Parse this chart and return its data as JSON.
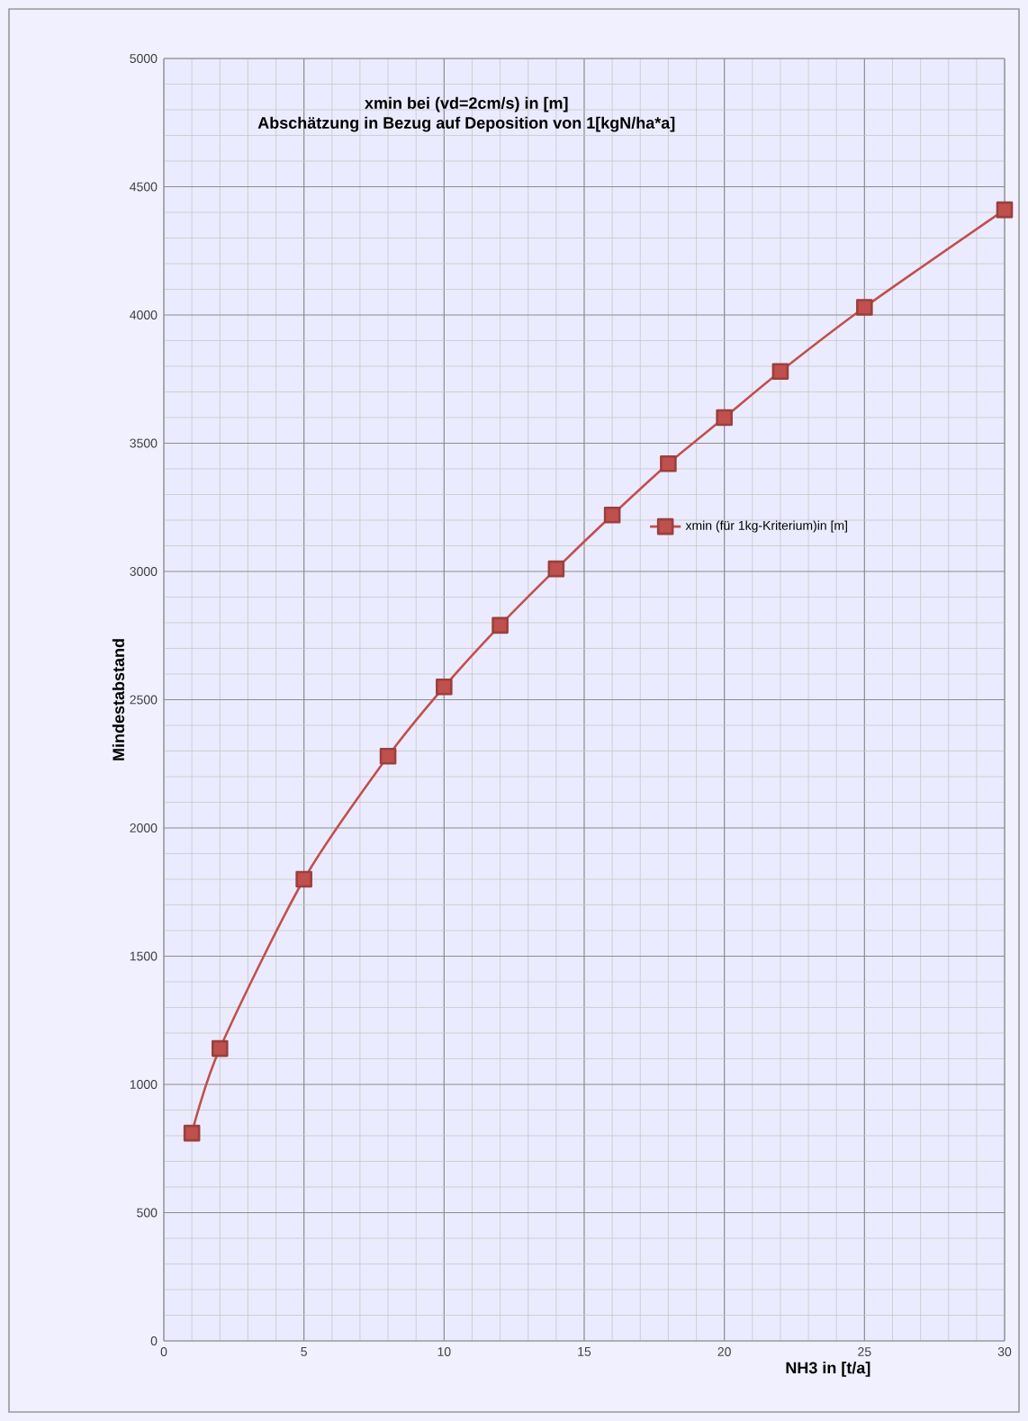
{
  "chart_data": {
    "type": "line",
    "title": "xmin bei (vd=2cm/s) in [m]",
    "subtitle": "Abschätzung in Bezug auf Deposition von 1[kgN/ha*a]",
    "xlabel": "NH3 in [t/a]",
    "ylabel": "Mindestabstand",
    "x": [
      1,
      2,
      5,
      8,
      10,
      12,
      14,
      16,
      18,
      20,
      22,
      25,
      30
    ],
    "series": [
      {
        "name": "xmin (für 1kg-Kriterium)in [m]",
        "color": "#c0504d",
        "values": [
          810,
          1140,
          1800,
          2280,
          2550,
          2790,
          3010,
          3220,
          3420,
          3600,
          3780,
          4030,
          4410
        ]
      }
    ],
    "xlim": [
      0,
      30
    ],
    "xticks": [
      0,
      5,
      10,
      15,
      20,
      25,
      30
    ],
    "ylim": [
      0,
      5000
    ],
    "yticks": [
      0,
      500,
      1000,
      1500,
      2000,
      2500,
      3000,
      3500,
      4000,
      4500,
      5000
    ],
    "grid": true,
    "legend": "right",
    "marker": "square",
    "line_style": "solid"
  }
}
